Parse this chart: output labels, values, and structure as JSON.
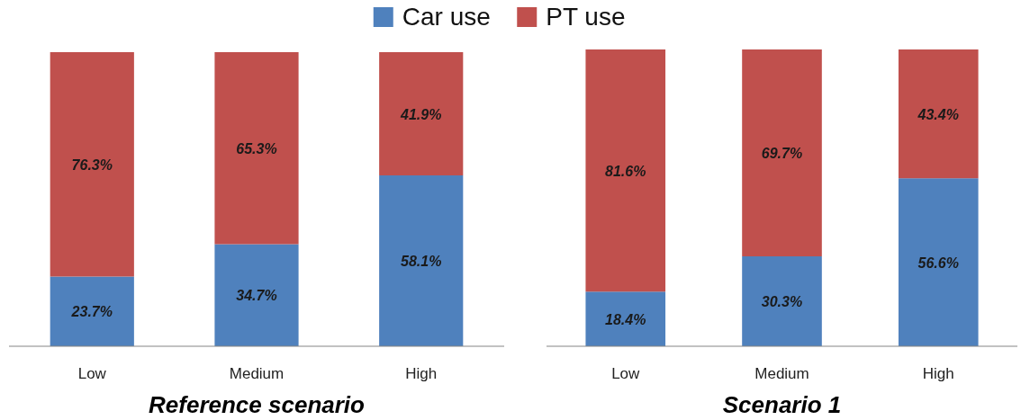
{
  "chart_data": [
    {
      "type": "bar",
      "title": "Reference scenario",
      "stacked": true,
      "legend": "top",
      "categories": [
        "Low",
        "Medium",
        "High"
      ],
      "series": [
        {
          "name": "Car use",
          "color": "#4f81bd",
          "values": [
            23.7,
            34.7,
            58.1
          ],
          "value_labels": [
            "23.7%",
            "34.7%",
            "58.1%"
          ]
        },
        {
          "name": "PT use",
          "color": "#c0504d",
          "values": [
            76.3,
            65.3,
            41.9
          ],
          "value_labels": [
            "76.3%",
            "65.3%",
            "41.9%"
          ]
        }
      ]
    },
    {
      "type": "bar",
      "title": "Scenario 1",
      "stacked": true,
      "categories": [
        "Low",
        "Medium",
        "High"
      ],
      "series": [
        {
          "color": "#4f81bd",
          "values": [
            18.4,
            30.3,
            56.6
          ],
          "value_labels": [
            "18.4%",
            "30.3%",
            "56.6%"
          ]
        },
        {
          "color": "#c0504d",
          "values": [
            81.6,
            69.7,
            43.4
          ],
          "value_labels": [
            "81.6%",
            "69.7%",
            "43.4%"
          ]
        }
      ]
    }
  ]
}
